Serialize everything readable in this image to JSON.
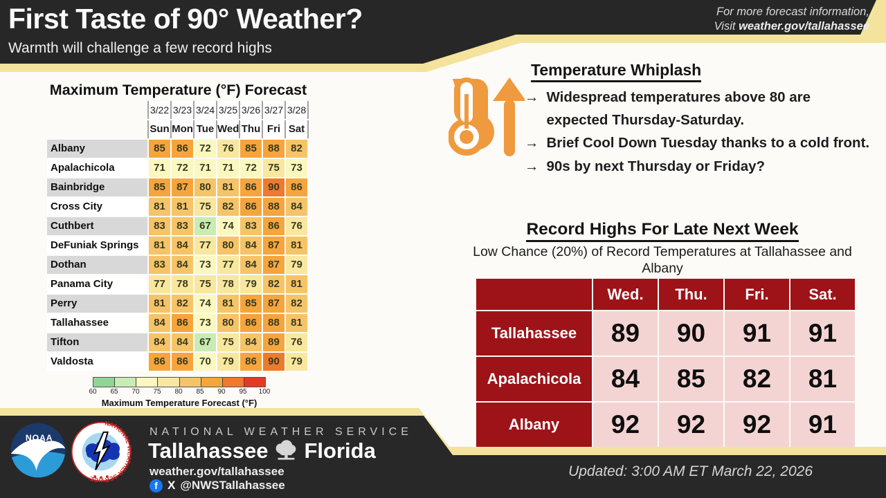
{
  "header": {
    "title": "First Taste of 90° Weather?",
    "subtitle": "Warmth will challenge a few record highs",
    "info_line1": "For more forecast information,",
    "info_visit_prefix": "Visit ",
    "info_site": "weather.gov/tallahassee"
  },
  "chart_data": [
    {
      "type": "heatmap",
      "title": "Maximum Temperature (°F) Forecast",
      "col_dates": [
        "3/22",
        "3/23",
        "3/24",
        "3/25",
        "3/26",
        "3/27",
        "3/28"
      ],
      "col_days": [
        "Sun",
        "Mon",
        "Tue",
        "Wed",
        "Thu",
        "Fri",
        "Sat"
      ],
      "rows": [
        {
          "city": "Albany",
          "values": [
            85,
            86,
            72,
            76,
            85,
            88,
            82
          ]
        },
        {
          "city": "Apalachicola",
          "values": [
            71,
            72,
            71,
            71,
            72,
            75,
            73
          ]
        },
        {
          "city": "Bainbridge",
          "values": [
            85,
            87,
            80,
            81,
            86,
            90,
            86
          ]
        },
        {
          "city": "Cross City",
          "values": [
            81,
            81,
            75,
            82,
            86,
            88,
            84
          ]
        },
        {
          "city": "Cuthbert",
          "values": [
            83,
            83,
            67,
            74,
            83,
            86,
            76
          ]
        },
        {
          "city": "DeFuniak Springs",
          "values": [
            81,
            84,
            77,
            80,
            84,
            87,
            81
          ]
        },
        {
          "city": "Dothan",
          "values": [
            83,
            84,
            73,
            77,
            84,
            87,
            79
          ]
        },
        {
          "city": "Panama City",
          "values": [
            77,
            78,
            75,
            78,
            79,
            82,
            81
          ]
        },
        {
          "city": "Perry",
          "values": [
            81,
            82,
            74,
            81,
            85,
            87,
            82
          ]
        },
        {
          "city": "Tallahassee",
          "values": [
            84,
            86,
            73,
            80,
            86,
            88,
            81
          ]
        },
        {
          "city": "Tifton",
          "values": [
            84,
            84,
            67,
            75,
            84,
            89,
            76
          ]
        },
        {
          "city": "Valdosta",
          "values": [
            86,
            86,
            70,
            79,
            86,
            90,
            79
          ]
        }
      ],
      "bands": [
        [
          60,
          "#8FD694"
        ],
        [
          65,
          "#C8ECB4"
        ],
        [
          70,
          "#FAF8C0"
        ],
        [
          75,
          "#F8E79E"
        ],
        [
          80,
          "#F6C468"
        ],
        [
          85,
          "#F5A53C"
        ],
        [
          90,
          "#EE7A2D"
        ],
        [
          95,
          "#E33B22"
        ]
      ],
      "colorbar": {
        "ticks": [
          60,
          65,
          70,
          75,
          80,
          85,
          90,
          95,
          100
        ],
        "band_colors": [
          "#8FD694",
          "#C8ECB4",
          "#FAF8C0",
          "#F8E79E",
          "#F6C468",
          "#F5A53C",
          "#EE7A2D",
          "#E33B22"
        ],
        "label": "Maximum Temperature Forecast (°F)"
      }
    },
    {
      "type": "table",
      "title": "Record Highs For Late Next Week",
      "subtitle": "Low Chance (20%) of Record Temperatures at Tallahassee and Albany",
      "columns": [
        "Wed.",
        "Thu.",
        "Fri.",
        "Sat."
      ],
      "rows": [
        {
          "city": "Tallahassee",
          "values": [
            89,
            90,
            91,
            91
          ]
        },
        {
          "city": "Apalachicola",
          "values": [
            84,
            85,
            82,
            81
          ]
        },
        {
          "city": "Albany",
          "values": [
            92,
            92,
            92,
            91
          ]
        }
      ]
    }
  ],
  "whiplash": {
    "heading": "Temperature Whiplash",
    "bullet_icon": "→",
    "bullets": [
      "Widespread temperatures above 80 are expected Thursday-Saturday.",
      "Brief Cool Down Tuesday thanks to a cold front.",
      "90s by next Thursday or Friday?"
    ]
  },
  "footer": {
    "agency": "NATIONAL WEATHER SERVICE",
    "office_city": "Tallahassee",
    "office_state": "Florida",
    "website": "weather.gov/tallahassee",
    "social_handle": "@NWSTallahassee",
    "updated": "Updated: 3:00 AM ET March 22, 2026",
    "noaa_label": "NOAA",
    "nws_seal_text": "NATIONAL WEATHER SERVICE"
  },
  "colors": {
    "band_gold": "#F3E39C",
    "band_dark": "#272727",
    "record_red": "#9E1318",
    "record_pink": "#F3D4D3",
    "icon_orange": "#EF9A3E",
    "facebook_blue": "#1877F2"
  }
}
